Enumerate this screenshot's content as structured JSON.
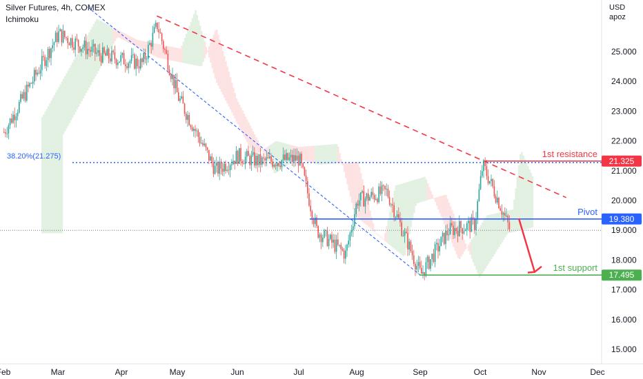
{
  "header": {
    "title": "Silver Futures, 4h, COMEX",
    "indicator": "Ichimoku"
  },
  "price_axis": {
    "currency": "USD",
    "mode": "apoz"
  },
  "colors": {
    "up": "#26a69a",
    "down": "#ef5350",
    "resistance": "#f23645",
    "pivot": "#2962ff",
    "support": "#4caf50",
    "fib": "#2962ff",
    "cloud_bull": "#e0f0e0",
    "cloud_bear": "#fde0e0"
  },
  "chart_data": {
    "type": "candlestick",
    "instrument": "Silver Futures",
    "timeframe": "4h",
    "ylim": [
      14.6,
      26.6
    ],
    "y_ticks": [
      "15.000",
      "16.000",
      "17.000",
      "18.000",
      "19.000",
      "20.000",
      "21.000",
      "22.000",
      "23.000",
      "24.000",
      "25.000"
    ],
    "x_ticks": [
      "Feb",
      "Mar",
      "Apr",
      "May",
      "Jun",
      "Jul",
      "Aug",
      "Sep",
      "Oct",
      "Nov",
      "Dec"
    ],
    "price_path": [
      [
        "Feb",
        22.3
      ],
      [
        "Mar",
        25.6
      ],
      [
        "Mar 20",
        24.9
      ],
      [
        "Apr 12",
        24.6
      ],
      [
        "Apr 20",
        25.9
      ],
      [
        "May",
        23.5
      ],
      [
        "May 20",
        21.0
      ],
      [
        "Jun",
        21.5
      ],
      [
        "Jun 12",
        21.3
      ],
      [
        "Jul",
        21.4
      ],
      [
        "Jul 10",
        19.0
      ],
      [
        "Jul 25",
        18.2
      ],
      [
        "Aug",
        20.0
      ],
      [
        "Aug 15",
        20.3
      ],
      [
        "Sep",
        17.5
      ],
      [
        "Sep 15",
        19.0
      ],
      [
        "Sep 28",
        19.2
      ],
      [
        "Oct 2",
        21.2
      ],
      [
        "Oct 10",
        20.0
      ],
      [
        "Oct 16",
        19.0
      ]
    ],
    "levels": [
      {
        "name": "1st resistance",
        "value": 21.325,
        "label": "21.325"
      },
      {
        "name": "Pivot",
        "value": 19.38,
        "label": "19.380"
      },
      {
        "name": "1st support",
        "value": 17.495,
        "label": "17.495"
      }
    ],
    "fibonacci": {
      "label": "38.20%(21.275)",
      "value": 21.275
    },
    "last_price": 19.0,
    "trendlines": [
      {
        "style": "dashed",
        "color": "red",
        "from": [
          "Apr 20",
          26.2
        ],
        "to": [
          "Nov 15",
          20.1
        ]
      },
      {
        "style": "dashed",
        "color": "blue",
        "from": [
          "Mar 15",
          26.5
        ],
        "to": [
          "Sep",
          17.5
        ]
      }
    ],
    "projection_arrow": {
      "from": 19.4,
      "to": 17.6
    }
  }
}
